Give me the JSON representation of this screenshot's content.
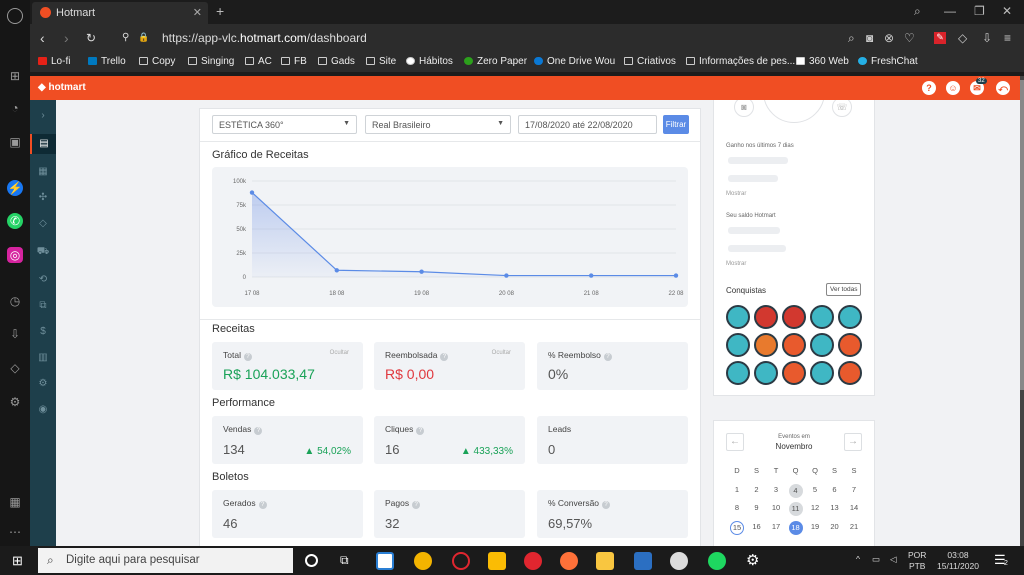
{
  "browser": {
    "tab_title": "Hotmart",
    "url_prefix": "https://app-vlc.",
    "url_domain": "hotmart.com",
    "url_path": "/dashboard",
    "bookmarks": [
      "Lo-fi",
      "Trello",
      "Copy",
      "Singing",
      "AC",
      "FB",
      "Gads",
      "Site",
      "Hábitos",
      "Zero Paper",
      "One Drive Wou",
      "Criativos",
      "Informações de pes...",
      "360 Web",
      "FreshChat"
    ]
  },
  "hotmart": {
    "logo": "hotmart",
    "notif_count": "32"
  },
  "filters": {
    "product": "ESTÉTICA 360°",
    "currency": "Real Brasileiro",
    "date_range": "17/08/2020 até 22/08/2020",
    "filter_button": "Filtrar"
  },
  "chart_data": {
    "type": "area",
    "title": "Gráfico de Receitas",
    "categories": [
      "17 08",
      "18 08",
      "19 08",
      "20 08",
      "21 08",
      "22 08"
    ],
    "values": [
      88000,
      7000,
      5500,
      1500,
      1500,
      1500
    ],
    "yticks": [
      "100k",
      "75k",
      "50k",
      "25k",
      "0"
    ],
    "ylim": [
      0,
      100000
    ],
    "grid": true,
    "color": "#5b8be6"
  },
  "receitas": {
    "heading": "Receitas",
    "total_label": "Total",
    "total_value": "R$ 104.033,47",
    "reembolsada_label": "Reembolsada",
    "reembolsada_value": "R$ 0,00",
    "reembolso_pct_label": "% Reembolso",
    "reembolso_pct_value": "0%",
    "hide_label": "Ocultar"
  },
  "performance": {
    "heading": "Performance",
    "vendas_label": "Vendas",
    "vendas_value": "134",
    "vendas_trend": "▲ 54,02%",
    "cliques_label": "Cliques",
    "cliques_value": "16",
    "cliques_trend": "▲ 433,33%",
    "leads_label": "Leads",
    "leads_value": "0"
  },
  "boletos": {
    "heading": "Boletos",
    "gerados_label": "Gerados",
    "gerados_value": "46",
    "pagos_label": "Pagos",
    "pagos_value": "32",
    "conversao_label": "% Conversão",
    "conversao_value": "69,57%"
  },
  "profile": {
    "ganhos_label": "Ganho nos últimos 7 dias",
    "mostrar": "Mostrar",
    "saldo_label": "Seu saldo Hotmart",
    "conquistas": "Conquistas",
    "ver_todas": "Ver todas"
  },
  "events": {
    "label": "Eventos em",
    "month": "Novembro",
    "weekdays": [
      "D",
      "S",
      "T",
      "Q",
      "Q",
      "S",
      "S"
    ],
    "week1": [
      "1",
      "2",
      "3",
      "4",
      "5",
      "6",
      "7"
    ],
    "week2": [
      "8",
      "9",
      "10",
      "11",
      "12",
      "13",
      "14"
    ],
    "week3": [
      "15",
      "16",
      "17",
      "18",
      "19",
      "20",
      "21"
    ]
  },
  "taskbar": {
    "search_placeholder": "Digite aqui para pesquisar",
    "lang": "POR",
    "layout": "PTB",
    "time": "03:08",
    "date": "15/11/2020",
    "notif": "2"
  }
}
